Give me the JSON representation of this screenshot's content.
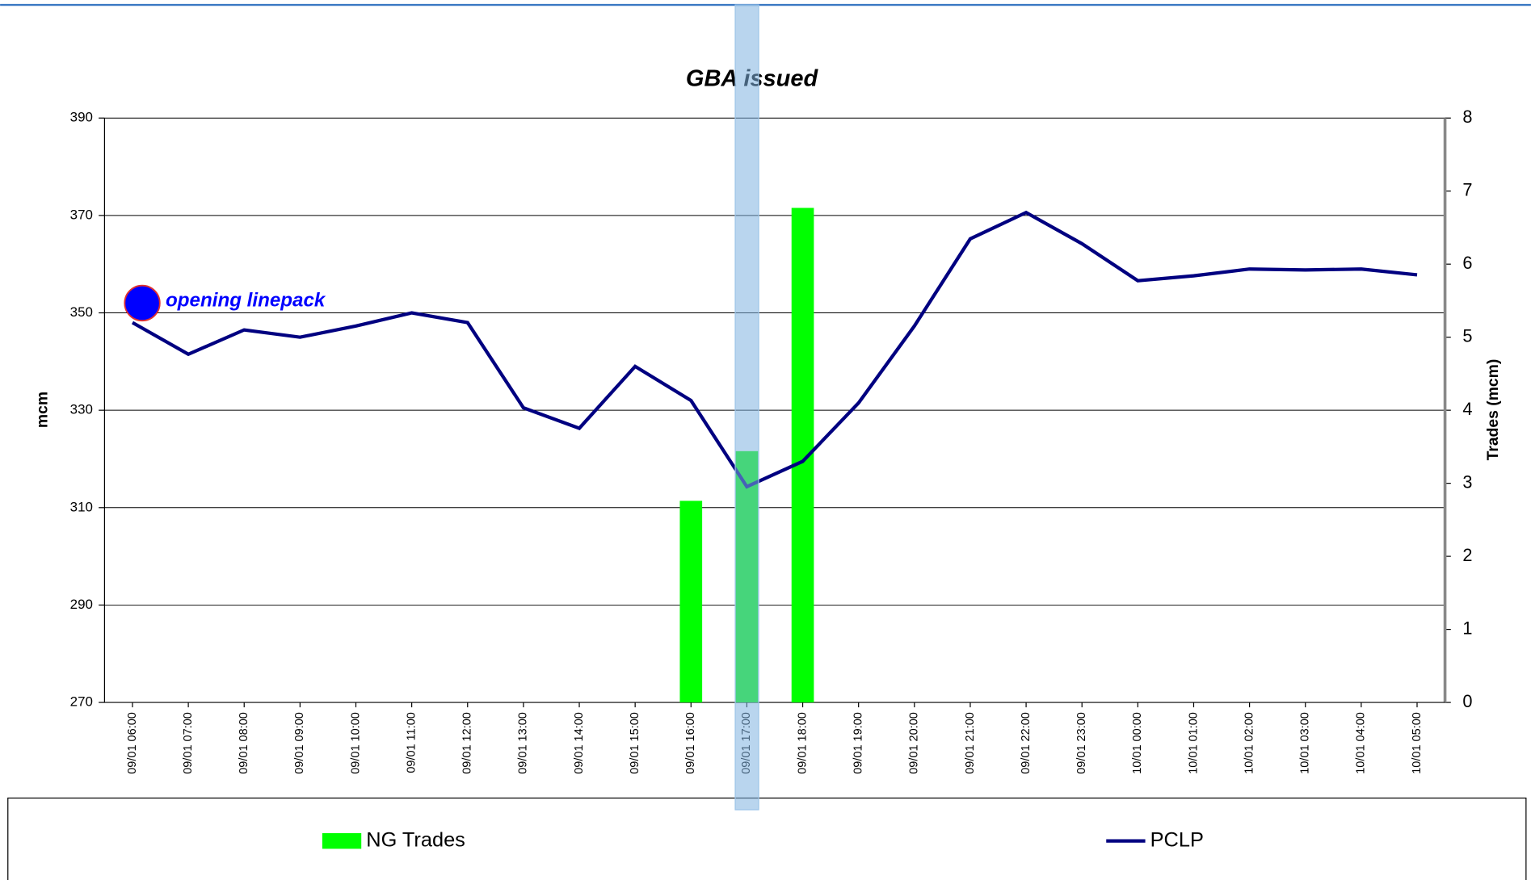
{
  "chart_data": {
    "type": "combo",
    "title": "GBA issued",
    "y_label": "mcm",
    "y2_label": "Trades (mcm)",
    "categories": [
      "09/01 06:00",
      "09/01 07:00",
      "09/01 08:00",
      "09/01 09:00",
      "09/01 10:00",
      "09/01 11:00",
      "09/01 12:00",
      "09/01 13:00",
      "09/01 14:00",
      "09/01 15:00",
      "09/01 16:00",
      "09/01 17:00",
      "09/01 18:00",
      "09/01 19:00",
      "09/01 20:00",
      "09/01 21:00",
      "09/01 22:00",
      "09/01 23:00",
      "10/01 00:00",
      "10/01 01:00",
      "10/01 02:00",
      "10/01 03:00",
      "10/01 04:00",
      "10/01 05:00"
    ],
    "series": [
      {
        "name": "NG Trades",
        "type": "bar",
        "axis": "y2",
        "color": "#00ff00",
        "values": [
          null,
          null,
          null,
          null,
          null,
          null,
          null,
          null,
          null,
          null,
          2.76,
          3.44,
          6.77,
          null,
          null,
          null,
          null,
          null,
          null,
          null,
          null,
          null,
          null,
          null
        ]
      },
      {
        "name": "PCLP",
        "type": "line",
        "axis": "y",
        "color": "#000080",
        "values": [
          348,
          341.5,
          346.5,
          345,
          347.3,
          350,
          348,
          330.5,
          326.3,
          339,
          332,
          314.3,
          319.5,
          331.5,
          347.3,
          365.2,
          370.6,
          364.2,
          356.6,
          357.6,
          359,
          358.8,
          359,
          357.8
        ]
      }
    ],
    "annotation": {
      "text": "opening linepack",
      "value": 352,
      "color": "#0000ff"
    },
    "ylim": [
      270,
      390
    ],
    "yticks": [
      270,
      290,
      310,
      330,
      350,
      370,
      390
    ],
    "y2lim": [
      0,
      8
    ],
    "y2ticks": [
      0,
      1,
      2,
      3,
      4,
      5,
      6,
      7,
      8
    ],
    "grid": true,
    "legend": "bottom"
  }
}
